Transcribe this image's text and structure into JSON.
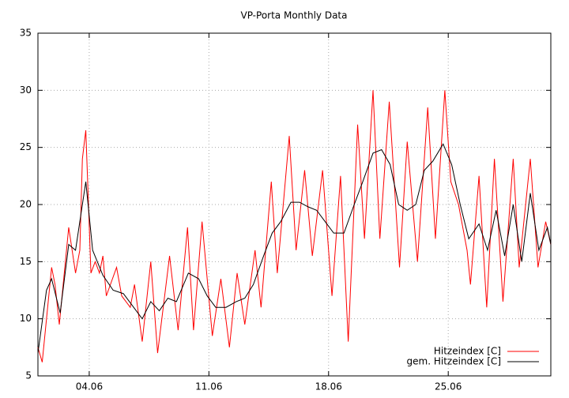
{
  "chart_data": {
    "type": "line",
    "title": "VP-Porta Monthly Data",
    "xlim": [
      1,
      31
    ],
    "ylim": [
      5,
      35
    ],
    "xticks": [
      {
        "value": 4,
        "label": "04.06"
      },
      {
        "value": 11,
        "label": "11.06"
      },
      {
        "value": 18,
        "label": "18.06"
      },
      {
        "value": 25,
        "label": "25.06"
      }
    ],
    "yticks": [
      5,
      10,
      15,
      20,
      25,
      30,
      35
    ],
    "grid": true,
    "legend": "lower right",
    "series": [
      {
        "name": "Hitzeindex [C]",
        "color": "#ff0000",
        "x": [
          1,
          1.25,
          1.8,
          2.0,
          2.25,
          2.8,
          3.2,
          3.45,
          3.6,
          3.8,
          4.1,
          4.35,
          4.6,
          4.8,
          5.0,
          5.6,
          5.9,
          6.4,
          6.65,
          7.1,
          7.6,
          8.0,
          8.7,
          9.2,
          9.75,
          10.1,
          10.6,
          11.2,
          11.7,
          12.2,
          12.65,
          13.1,
          13.7,
          14.05,
          14.65,
          15.0,
          15.7,
          16.1,
          16.6,
          17.05,
          17.65,
          18.2,
          18.7,
          19.15,
          19.7,
          20.1,
          20.6,
          21.0,
          21.55,
          22.15,
          22.6,
          23.2,
          23.8,
          24.25,
          24.8,
          25.15,
          25.6,
          26.1,
          26.3,
          26.8,
          27.25,
          27.7,
          28.2,
          28.8,
          29.15,
          29.8,
          30.25,
          30.7,
          31
        ],
        "values": [
          7.5,
          6.2,
          14.5,
          13,
          9.5,
          18,
          14,
          16,
          24,
          26.5,
          14,
          15,
          14,
          15.5,
          12,
          14.5,
          12,
          11,
          13,
          8,
          15,
          7,
          15.5,
          9,
          18,
          9,
          18.5,
          8.5,
          13.5,
          7.5,
          14,
          9.5,
          16,
          11,
          22,
          14,
          26,
          16,
          23,
          15.5,
          23,
          12,
          22.5,
          8,
          27,
          17,
          30,
          17,
          29,
          14.5,
          25.5,
          15,
          28.5,
          17,
          30,
          22,
          20,
          16,
          13,
          22.5,
          11,
          24,
          11.5,
          24,
          14.5,
          24,
          14.5,
          18.5,
          16.5
        ]
      },
      {
        "name": "gem. Hitzeindex [C]",
        "color": "#000000",
        "x": [
          1,
          1.5,
          1.8,
          2.3,
          2.8,
          3.2,
          3.8,
          4.2,
          4.8,
          5.4,
          6,
          6.6,
          7.1,
          7.6,
          8.1,
          8.6,
          9.1,
          9.8,
          10.4,
          10.9,
          11.4,
          12,
          12.6,
          13.1,
          13.6,
          14.2,
          14.7,
          15.2,
          15.8,
          16.3,
          16.8,
          17.3,
          17.8,
          18.3,
          18.9,
          19.5,
          20,
          20.6,
          21.1,
          21.6,
          22.1,
          22.6,
          23.1,
          23.6,
          24.1,
          24.7,
          25.2,
          25.7,
          26.2,
          26.8,
          27.3,
          27.8,
          28.3,
          28.8,
          29.3,
          29.8,
          30.3,
          30.8,
          31
        ],
        "values": [
          7,
          12.5,
          13.5,
          10.5,
          16.5,
          16,
          22,
          16,
          13.8,
          12.5,
          12.2,
          11,
          10,
          11.5,
          10.7,
          11.8,
          11.5,
          14,
          13.5,
          12,
          11,
          11,
          11.5,
          11.8,
          13,
          15.5,
          17.5,
          18.5,
          20.2,
          20.2,
          19.8,
          19.5,
          18.5,
          17.5,
          17.5,
          20,
          22,
          24.5,
          24.8,
          23.5,
          20,
          19.5,
          20,
          23,
          23.8,
          25.3,
          23.5,
          20,
          17,
          18.3,
          16,
          19.5,
          15.5,
          20,
          15,
          21,
          16,
          18,
          16.5
        ]
      }
    ]
  }
}
